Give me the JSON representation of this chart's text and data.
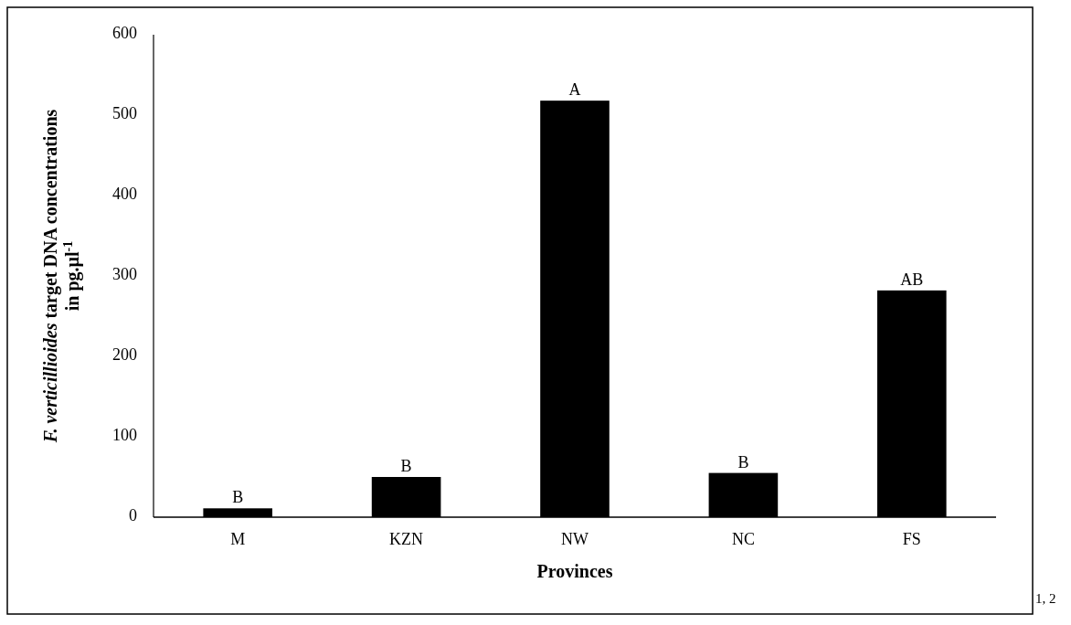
{
  "chart_data": {
    "type": "bar",
    "xlabel": "Provinces",
    "ylabel": "F. verticillioides target DNA concentrations in pg.µl$^{-1}$",
    "categories": [
      "M",
      "KZN",
      "NW",
      "NC",
      "FS"
    ],
    "values": [
      11,
      50,
      518,
      55,
      282
    ],
    "value_labels": [
      "B",
      "B",
      "A",
      "B",
      "AB"
    ],
    "color": "#000000",
    "ylim": [
      0,
      600
    ],
    "yticks": [
      0,
      100,
      200,
      300,
      400,
      500,
      600
    ],
    "annotations": [
      "1, 2"
    ]
  }
}
